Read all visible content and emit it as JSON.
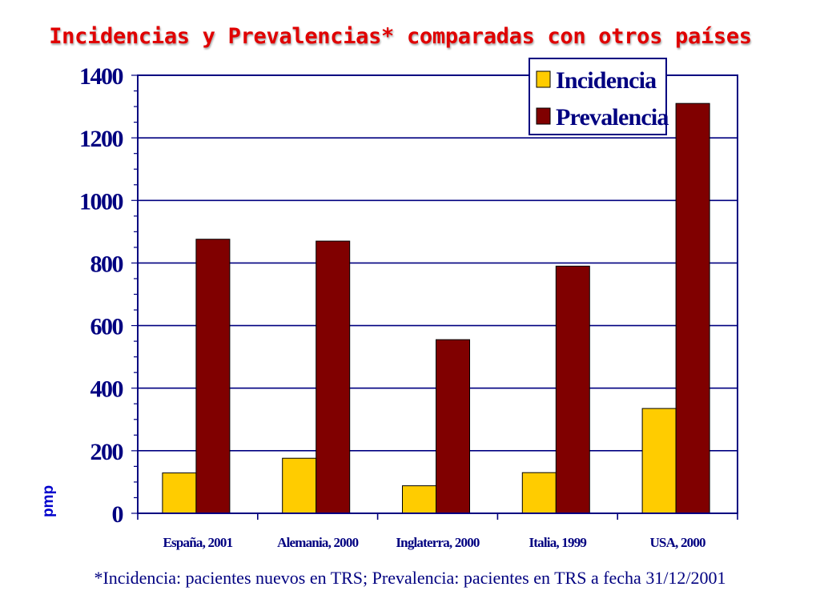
{
  "slide": {
    "title": "Incidencias y Prevalencias* comparadas con otros países",
    "footnote": "*Incidencia: pacientes nuevos en TRS; Prevalencia: pacientes en TRS a fecha 31/12/2001"
  },
  "colors": {
    "title": "#e00000",
    "axis": "#000080",
    "grid": "#000080",
    "incidencia": "#ffcc00",
    "prevalencia": "#800000"
  },
  "chart_data": {
    "type": "bar",
    "title": "",
    "xlabel": "",
    "ylabel": "pmp",
    "ylim": [
      0,
      1400
    ],
    "yticks": [
      0,
      200,
      400,
      600,
      800,
      1000,
      1200,
      1400
    ],
    "grid": true,
    "legend_position": "top-right",
    "categories": [
      "España, 2001",
      "Alemania, 2000",
      "Inglaterra, 2000",
      "Italia, 1999",
      "USA, 2000"
    ],
    "series": [
      {
        "name": "Incidencia",
        "color": "#ffcc00",
        "values": [
          129,
          176,
          88,
          130,
          335
        ]
      },
      {
        "name": "Prevalencia",
        "color": "#800000",
        "values": [
          876,
          870,
          555,
          790,
          1310
        ]
      }
    ]
  }
}
